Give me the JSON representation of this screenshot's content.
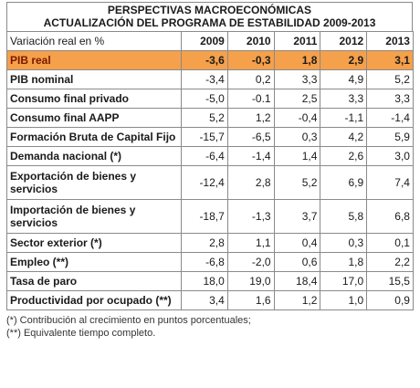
{
  "title": {
    "line1": "PERSPECTIVAS MACROECONÓMICAS",
    "line2": "ACTUALIZACIÓN DEL PROGRAMA DE ESTABILIDAD 2009-2013"
  },
  "header": {
    "label": "Variación real en %",
    "years": [
      "2009",
      "2010",
      "2011",
      "2012",
      "2013"
    ]
  },
  "highlight_color": "#f5a04a",
  "rows": [
    {
      "label": "PIB real",
      "values": [
        "-3,6",
        "-0,3",
        "1,8",
        "2,9",
        "3,1"
      ]
    },
    {
      "label": "PIB nominal",
      "values": [
        "-3,4",
        "0,2",
        "3,3",
        "4,9",
        "5,2"
      ]
    },
    {
      "label": "Consumo final privado",
      "values": [
        "-5,0",
        "-0.1",
        "2,5",
        "3,3",
        "3,3"
      ]
    },
    {
      "label": "Consumo final AAPP",
      "values": [
        "5,2",
        "1,2",
        "-0,4",
        "-1,1",
        "-1,4"
      ]
    },
    {
      "label": "Formación Bruta de Capital Fijo",
      "values": [
        "-15,7",
        "-6,5",
        "0,3",
        "4,2",
        "5,9"
      ]
    },
    {
      "label": "Demanda nacional (*)",
      "values": [
        "-6,4",
        "-1,4",
        "1,4",
        "2,6",
        "3,0"
      ]
    },
    {
      "label": "Exportación de bienes y servicios",
      "values": [
        "-12,4",
        "2,8",
        "5,2",
        "6,9",
        "7,4"
      ]
    },
    {
      "label": "Importación de bienes y servicios",
      "values": [
        "-18,7",
        "-1,3",
        "3,7",
        "5,8",
        "6,8"
      ]
    },
    {
      "label": "Sector exterior (*)",
      "values": [
        "2,8",
        "1,1",
        "0,4",
        "0,3",
        "0,1"
      ]
    },
    {
      "label": "Empleo (**)",
      "values": [
        "-6,8",
        "-2,0",
        "0,6",
        "1,8",
        "2,2"
      ]
    },
    {
      "label": "Tasa de paro",
      "values": [
        "18,0",
        "19,0",
        "18,4",
        "17,0",
        "15,5"
      ]
    },
    {
      "label": "Productividad por ocupado (**)",
      "values": [
        "3,4",
        "1,6",
        "1,2",
        "1,0",
        "0,9"
      ]
    }
  ],
  "notes": [
    "(*) Contribución al crecimiento en puntos porcentuales;",
    "(**) Equivalente tiempo completo."
  ]
}
